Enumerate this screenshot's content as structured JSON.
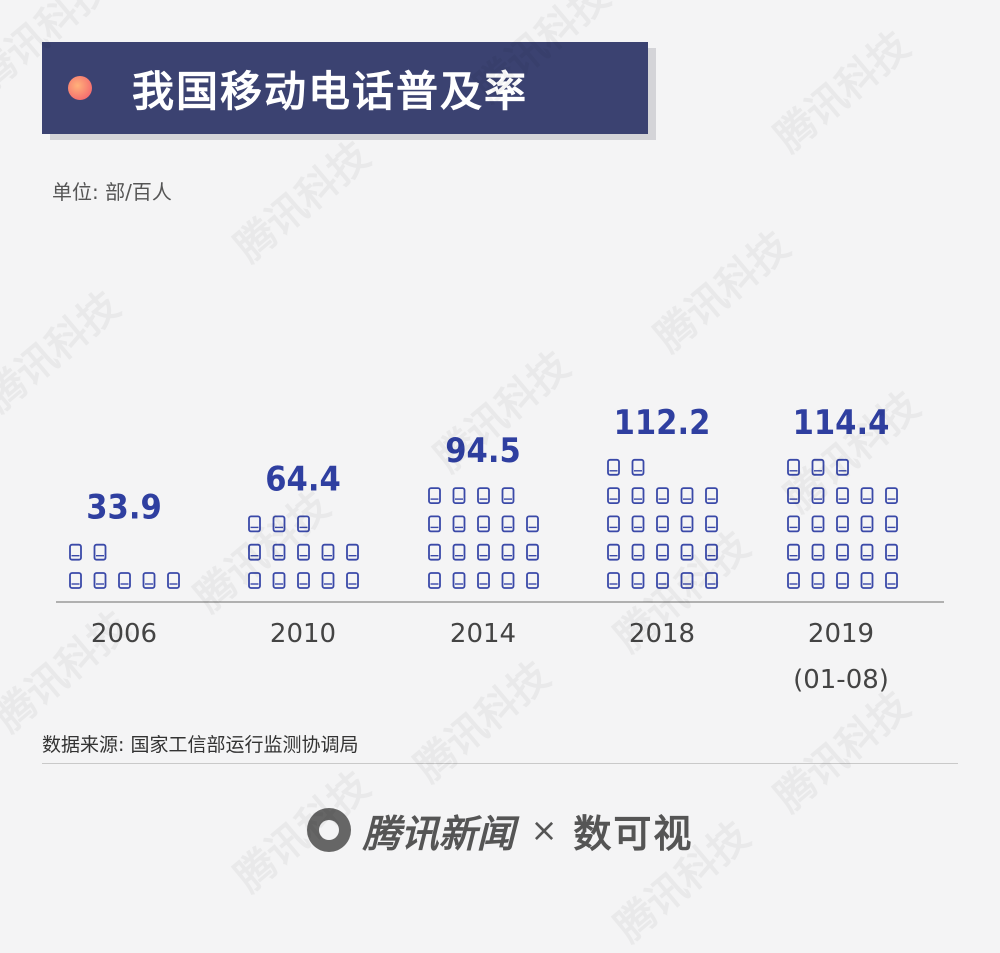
{
  "title": "我国移动电话普及率",
  "unit": "单位: 部/百人",
  "source": "数据来源: 国家工信部运行监测协调局",
  "footer": {
    "brand": "腾讯新闻",
    "times": "×",
    "brand2": "数可视"
  },
  "watermark": "腾讯科技",
  "colors": {
    "title_bg": "#3b4271",
    "bar": "#3a49a8",
    "value": "#2f3fa0",
    "axis": "#888888"
  },
  "icon": "mobile-phone-icon",
  "chart_data": {
    "type": "bar",
    "title": "我国移动电话普及率",
    "ylabel": "单位: 部/百人",
    "categories": [
      "2006",
      "2010",
      "2014",
      "2018",
      "2019\n(01-08)"
    ],
    "category_lines": [
      [
        "2006"
      ],
      [
        "2010"
      ],
      [
        "2014"
      ],
      [
        "2018"
      ],
      [
        "2019",
        "(01-08)"
      ]
    ],
    "values": [
      33.9,
      64.4,
      94.5,
      112.2,
      114.4
    ],
    "value_labels": [
      "33.9",
      "64.4",
      "94.5",
      "112.2",
      "114.4"
    ],
    "units_per_icon": 5
  }
}
